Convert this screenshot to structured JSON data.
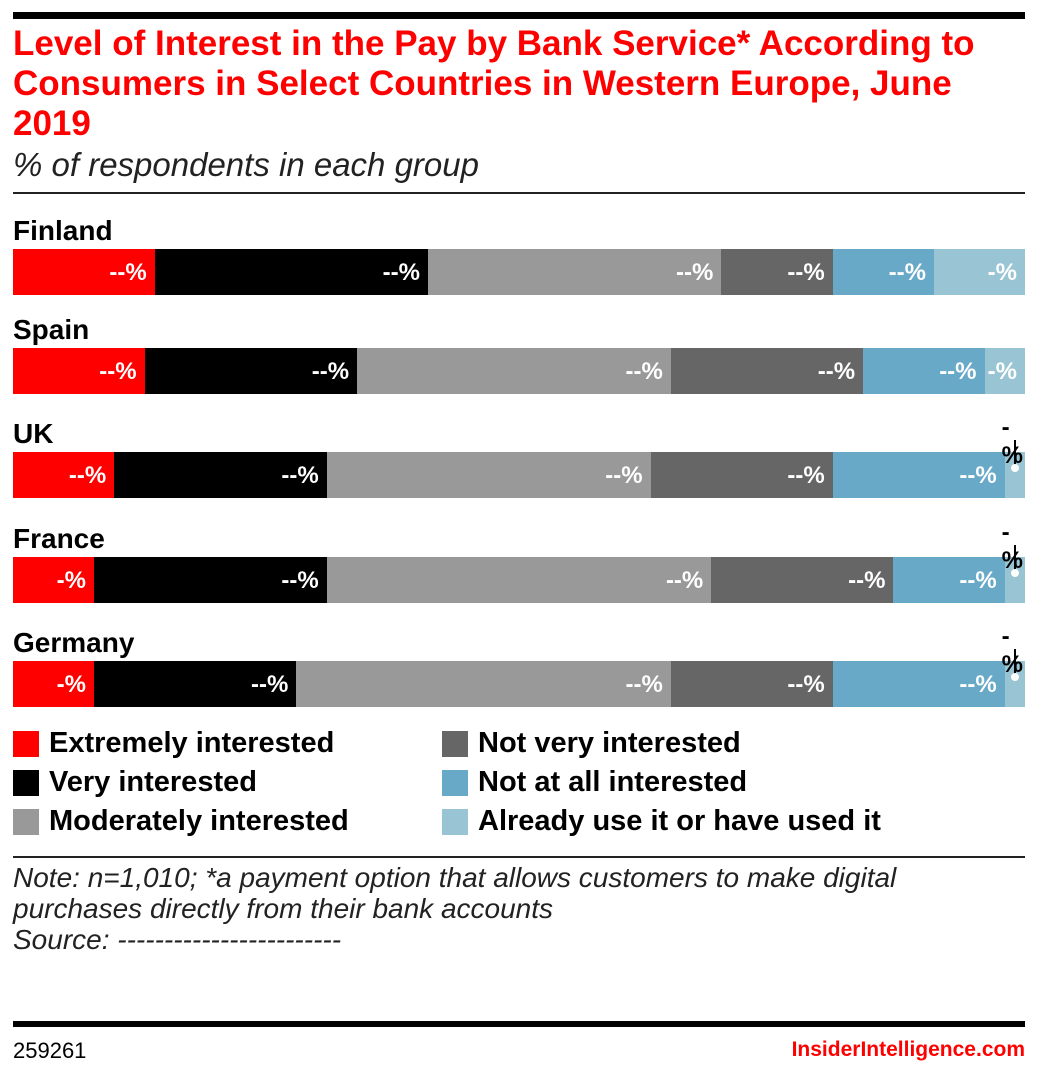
{
  "chart_data": {
    "type": "bar",
    "orientation": "horizontal-stacked-100",
    "title": "Level of Interest in the Pay by Bank Service* According to Consumers in Select Countries in Western Europe, June 2019",
    "subtitle": "% of respondents in each group",
    "categories": [
      "Finland",
      "Spain",
      "UK",
      "France",
      "Germany"
    ],
    "series": [
      {
        "name": "Extremely interested",
        "color": "#ff0000",
        "values": [
          14,
          13,
          10,
          8,
          8
        ],
        "labels": [
          "--%",
          "--%",
          "--%",
          "-%",
          "-%"
        ]
      },
      {
        "name": "Very interested",
        "color": "#000000",
        "values": [
          27,
          21,
          21,
          23,
          20
        ],
        "labels": [
          "--%",
          "--%",
          "--%",
          "--%",
          "--%"
        ]
      },
      {
        "name": "Moderately interested",
        "color": "#999999",
        "values": [
          29,
          31,
          32,
          38,
          37
        ],
        "labels": [
          "--%",
          "--%",
          "--%",
          "--%",
          "--%"
        ]
      },
      {
        "name": "Not very interested",
        "color": "#666666",
        "values": [
          11,
          19,
          18,
          18,
          16
        ],
        "labels": [
          "--%",
          "--%",
          "--%",
          "--%",
          "--%"
        ]
      },
      {
        "name": "Not at all interested",
        "color": "#68a9c8",
        "values": [
          10,
          12,
          17,
          11,
          17
        ],
        "labels": [
          "--%",
          "--%",
          "--%",
          "--%",
          "--%"
        ]
      },
      {
        "name": "Already use it or have used it",
        "color": "#98c4d3",
        "values": [
          9,
          4,
          2,
          2,
          2
        ],
        "labels": [
          "-%",
          "-%",
          "-%",
          "-%",
          "-%"
        ]
      }
    ],
    "xlim": [
      0,
      100
    ],
    "legend_position": "bottom"
  },
  "note": "Note: n=1,010; *a payment option that allows customers to make digital purchases directly from their bank accounts",
  "source": "Source: ------------------------",
  "chart_id": "259261",
  "brand": "InsiderIntelligence.com"
}
